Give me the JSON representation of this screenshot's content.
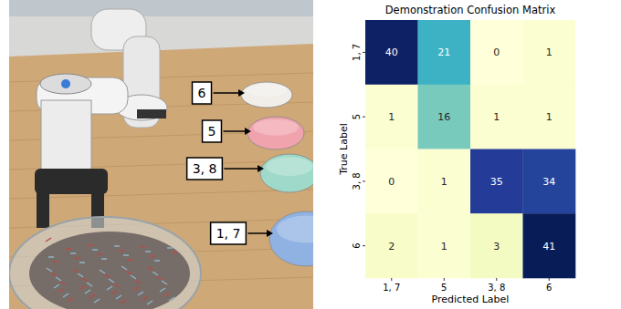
{
  "photo": {
    "bowl_labels": [
      "6",
      "5",
      "3, 8",
      "1, 7"
    ]
  },
  "chart_data": {
    "type": "heatmap",
    "title": "Demonstration Confusion Matrix",
    "x_label": "Predicted Label",
    "y_label": "True Label",
    "x_categories": [
      "1, 7",
      "5",
      "3, 8",
      "6"
    ],
    "y_categories": [
      "1, 7",
      "5",
      "3, 8",
      "6"
    ],
    "cells": [
      [
        40,
        21,
        0,
        1
      ],
      [
        1,
        16,
        1,
        1
      ],
      [
        0,
        1,
        35,
        34
      ],
      [
        2,
        1,
        3,
        41
      ]
    ],
    "color": "YlGnBu",
    "data_labels": true
  }
}
